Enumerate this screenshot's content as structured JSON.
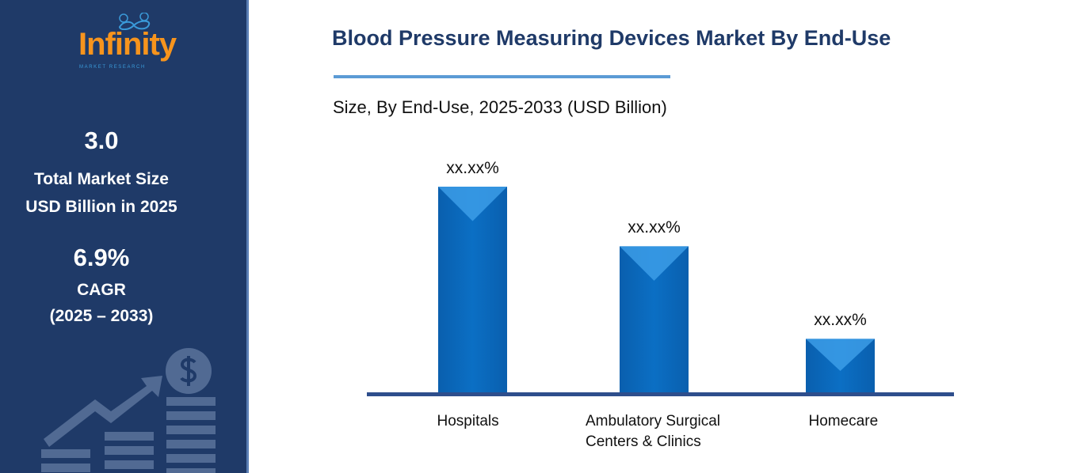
{
  "sidebar": {
    "logo_text": "Infinity",
    "logo_sub": "MARKET RESEARCH",
    "market_size": "3.0",
    "market_size_label_1": "Total Market Size",
    "market_size_label_2": "USD Billion in 2025",
    "cagr": "6.9%",
    "cagr_label": "CAGR",
    "cagr_period": "(2025 – 2033)",
    "icon": "growth-chart-dollar-icon"
  },
  "chart_data": {
    "type": "bar",
    "title": "Blood Pressure Measuring Devices Market By End-Use",
    "subtitle": "Size, By End-Use, 2025-2033 (USD Billion)",
    "categories": [
      "Hospitals",
      "Ambulatory Surgical Centers & Clinics",
      "Homecare"
    ],
    "category_lines": [
      [
        "Hospitals"
      ],
      [
        "Ambulatory Surgical",
        "Centers & Clinics"
      ],
      [
        "Homecare"
      ]
    ],
    "values_relative": [
      1.0,
      0.71,
      0.26
    ],
    "data_labels": [
      "xx.xx%",
      "xx.xx%",
      "xx.xx%"
    ],
    "grid": false,
    "colors": {
      "bar": "#0b6fc4",
      "bar_light": "#3fa0ea",
      "baseline": "#2e4e8c",
      "title": "#1f3a68"
    }
  }
}
